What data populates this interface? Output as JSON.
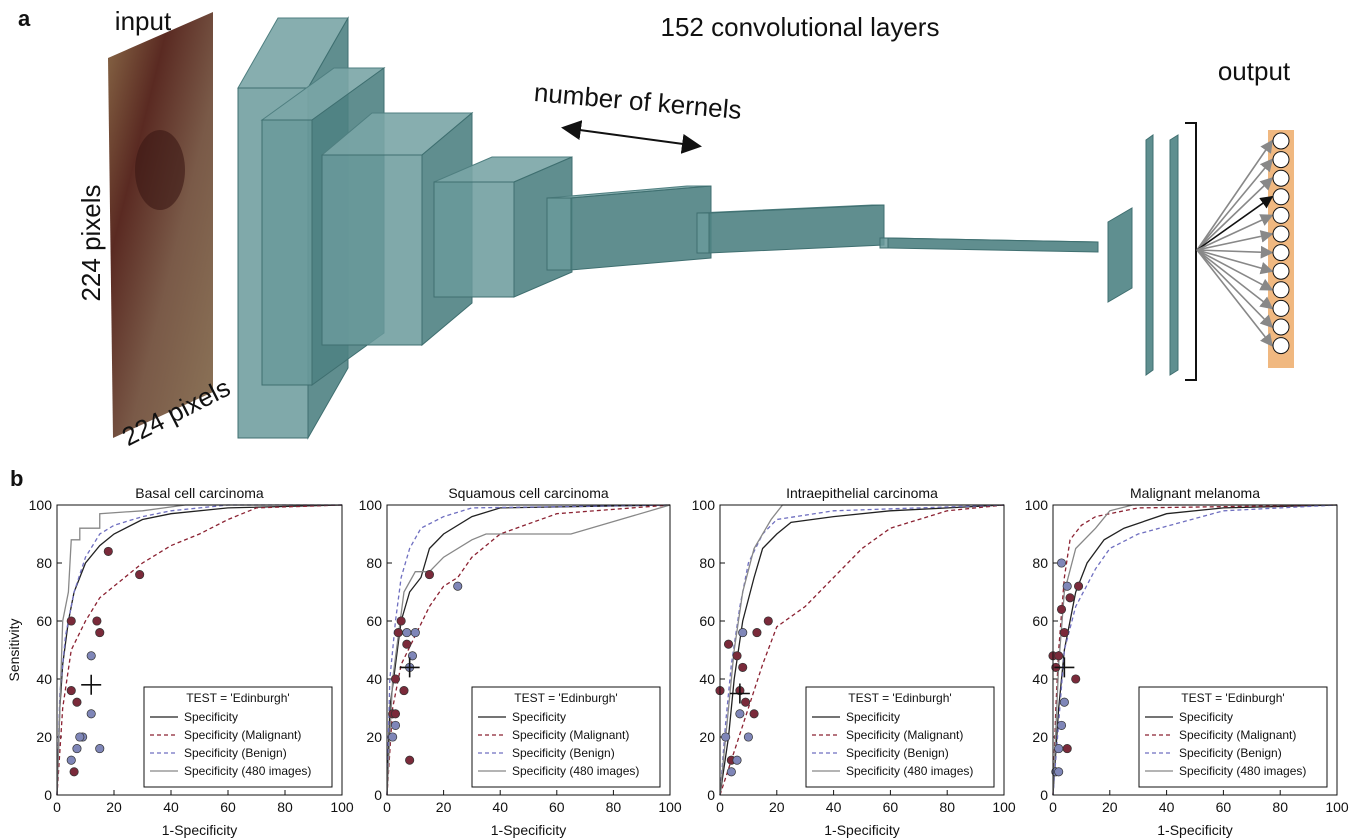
{
  "figure": {
    "panel_a": {
      "label": "a",
      "input": "input",
      "title": "152 convolutional layers",
      "output": "output",
      "kernels": "number of kernels",
      "height": "224 pixels",
      "width": "224 pixels"
    },
    "panel_b": {
      "label": "b"
    }
  },
  "chart_data": [
    {
      "type": "line",
      "title": "Basal cell carcinoma",
      "x_label": "1-Specificity",
      "y_label": "Sensitivity",
      "xlim": [
        0,
        100
      ],
      "ylim": [
        0,
        100
      ],
      "xticks": [
        0,
        20,
        40,
        60,
        80,
        100
      ],
      "yticks": [
        0,
        20,
        40,
        60,
        80,
        100
      ],
      "legend_title": "TEST = 'Edinburgh'",
      "legend": "lower right",
      "series": [
        {
          "name": "Specificity",
          "color": "#222222",
          "dash": false,
          "x": [
            0,
            1,
            2,
            4,
            6,
            10,
            15,
            20,
            30,
            40,
            60,
            100
          ],
          "values": [
            0,
            30,
            45,
            60,
            70,
            80,
            86,
            90,
            95,
            97,
            99,
            100
          ]
        },
        {
          "name": "Specificity (Malignant)",
          "color": "#8b2232",
          "dash": true,
          "x": [
            0,
            2,
            5,
            10,
            15,
            20,
            30,
            40,
            50,
            60,
            70,
            100
          ],
          "values": [
            0,
            30,
            50,
            60,
            68,
            72,
            80,
            86,
            90,
            95,
            99,
            100
          ]
        },
        {
          "name": "Specificity (Benign)",
          "color": "#6f6fc0",
          "dash": true,
          "x": [
            0,
            1,
            3,
            6,
            10,
            15,
            20,
            30,
            40,
            60,
            100
          ],
          "values": [
            0,
            35,
            55,
            70,
            82,
            90,
            93,
            96,
            98,
            100,
            100
          ]
        },
        {
          "name": "Specificity (480 images)",
          "color": "#888888",
          "dash": false,
          "x": [
            0,
            2,
            4,
            5,
            8,
            8,
            15,
            15,
            30,
            45,
            100
          ],
          "values": [
            0,
            60,
            70,
            88,
            88,
            92,
            92,
            97,
            98,
            100,
            100
          ]
        }
      ],
      "scatter": [
        {
          "color": "#7a2a3a",
          "x": [
            5,
            18,
            29,
            14,
            15,
            5,
            7,
            6
          ],
          "values": [
            60,
            84,
            76,
            60,
            56,
            36,
            32,
            8
          ]
        },
        {
          "color": "#7f86b8",
          "x": [
            12,
            12,
            9,
            8,
            5,
            7,
            15
          ],
          "values": [
            48,
            28,
            20,
            20,
            12,
            16,
            16
          ]
        }
      ],
      "mean": {
        "x": 12,
        "y": 38
      }
    },
    {
      "type": "line",
      "title": "Squamous cell carcinoma",
      "x_label": "1-Specificity",
      "xlim": [
        0,
        100
      ],
      "ylim": [
        0,
        100
      ],
      "xticks": [
        0,
        20,
        40,
        60,
        80,
        100
      ],
      "yticks": [
        0,
        20,
        40,
        60,
        80,
        100
      ],
      "legend_title": "TEST = 'Edinburgh'",
      "legend": "lower right",
      "series": [
        {
          "name": "Specificity",
          "color": "#222222",
          "dash": false,
          "x": [
            0,
            1,
            3,
            5,
            8,
            12,
            15,
            20,
            30,
            40,
            100
          ],
          "values": [
            0,
            30,
            45,
            60,
            70,
            75,
            85,
            90,
            96,
            99,
            100
          ]
        },
        {
          "name": "Specificity (Malignant)",
          "color": "#8b2232",
          "dash": true,
          "x": [
            0,
            2,
            5,
            10,
            15,
            20,
            25,
            30,
            40,
            60,
            100
          ],
          "values": [
            0,
            30,
            45,
            55,
            65,
            72,
            75,
            82,
            90,
            97,
            100
          ]
        },
        {
          "name": "Specificity (Benign)",
          "color": "#6f6fc0",
          "dash": true,
          "x": [
            0,
            1,
            3,
            5,
            8,
            12,
            20,
            30,
            100
          ],
          "values": [
            0,
            40,
            60,
            75,
            85,
            92,
            96,
            99,
            100
          ]
        },
        {
          "name": "Specificity (480 images)",
          "color": "#888888",
          "dash": false,
          "x": [
            0,
            2,
            4,
            6,
            10,
            15,
            20,
            30,
            35,
            50,
            65,
            100
          ],
          "values": [
            0,
            40,
            55,
            70,
            77,
            77,
            82,
            88,
            90,
            90,
            90,
            100
          ]
        }
      ],
      "scatter": [
        {
          "color": "#7a2a3a",
          "x": [
            3,
            5,
            4,
            7,
            6,
            15,
            8,
            2,
            3
          ],
          "values": [
            40,
            60,
            56,
            52,
            36,
            76,
            12,
            28,
            28
          ]
        },
        {
          "color": "#7f86b8",
          "x": [
            7,
            10,
            9,
            25,
            2,
            3,
            8
          ],
          "values": [
            56,
            56,
            48,
            72,
            20,
            24,
            44
          ]
        }
      ],
      "mean": {
        "x": 8,
        "y": 44
      }
    },
    {
      "type": "line",
      "title": "Intraepithelial carcinoma",
      "x_label": "1-Specificity",
      "xlim": [
        0,
        100
      ],
      "ylim": [
        0,
        100
      ],
      "xticks": [
        0,
        20,
        40,
        60,
        80,
        100
      ],
      "yticks": [
        0,
        20,
        40,
        60,
        80,
        100
      ],
      "legend_title": "TEST = 'Edinburgh'",
      "legend": "lower right",
      "series": [
        {
          "name": "Specificity",
          "color": "#222222",
          "dash": false,
          "x": [
            0,
            3,
            5,
            8,
            12,
            15,
            20,
            25,
            40,
            60,
            100
          ],
          "values": [
            0,
            20,
            40,
            60,
            75,
            85,
            90,
            94,
            96,
            98,
            100
          ]
        },
        {
          "name": "Specificity (Malignant)",
          "color": "#8b2232",
          "dash": true,
          "x": [
            0,
            5,
            10,
            15,
            20,
            30,
            40,
            50,
            60,
            80,
            100
          ],
          "values": [
            0,
            15,
            30,
            45,
            58,
            65,
            75,
            85,
            92,
            98,
            100
          ]
        },
        {
          "name": "Specificity (Benign)",
          "color": "#6f6fc0",
          "dash": true,
          "x": [
            0,
            2,
            4,
            7,
            10,
            15,
            20,
            40,
            100
          ],
          "values": [
            0,
            25,
            45,
            65,
            80,
            90,
            95,
            98,
            100
          ]
        },
        {
          "name": "Specificity (480 images)",
          "color": "#888888",
          "dash": false,
          "x": [
            0,
            3,
            5,
            8,
            12,
            18,
            22,
            100
          ],
          "values": [
            0,
            30,
            50,
            70,
            85,
            95,
            100,
            100
          ]
        }
      ],
      "scatter": [
        {
          "color": "#7a2a3a",
          "x": [
            0,
            3,
            6,
            8,
            9,
            13,
            17,
            4,
            12,
            7
          ],
          "values": [
            36,
            52,
            48,
            44,
            32,
            56,
            60,
            12,
            28,
            36
          ]
        },
        {
          "color": "#7f86b8",
          "x": [
            8,
            2,
            4,
            6,
            10,
            7
          ],
          "values": [
            56,
            20,
            8,
            12,
            20,
            28
          ]
        }
      ],
      "mean": {
        "x": 7,
        "y": 35
      }
    },
    {
      "type": "line",
      "title": "Malignant melanoma",
      "x_label": "1-Specificity",
      "xlim": [
        0,
        100
      ],
      "ylim": [
        0,
        100
      ],
      "xticks": [
        0,
        20,
        40,
        60,
        80,
        100
      ],
      "yticks": [
        0,
        20,
        40,
        60,
        80,
        100
      ],
      "legend_title": "TEST = 'Edinburgh'",
      "legend": "lower right",
      "series": [
        {
          "name": "Specificity",
          "color": "#222222",
          "dash": false,
          "x": [
            0,
            2,
            4,
            8,
            12,
            18,
            25,
            40,
            60,
            100
          ],
          "values": [
            0,
            30,
            50,
            70,
            80,
            88,
            92,
            97,
            99,
            100
          ]
        },
        {
          "name": "Specificity (Malignant)",
          "color": "#8b2232",
          "dash": true,
          "x": [
            0,
            1,
            2,
            4,
            6,
            10,
            15,
            30,
            100
          ],
          "values": [
            0,
            30,
            50,
            75,
            88,
            93,
            96,
            99,
            100
          ]
        },
        {
          "name": "Specificity (Benign)",
          "color": "#6f6fc0",
          "dash": true,
          "x": [
            0,
            2,
            4,
            8,
            15,
            20,
            30,
            45,
            60,
            100
          ],
          "values": [
            0,
            25,
            50,
            65,
            78,
            85,
            90,
            94,
            98,
            100
          ]
        },
        {
          "name": "Specificity (480 images)",
          "color": "#888888",
          "dash": false,
          "x": [
            0,
            2,
            4,
            8,
            15,
            20,
            28,
            100
          ],
          "values": [
            0,
            45,
            70,
            85,
            92,
            98,
            100,
            100
          ]
        }
      ],
      "scatter": [
        {
          "color": "#7a2a3a",
          "x": [
            0,
            2,
            3,
            4,
            6,
            9,
            8,
            5,
            1
          ],
          "values": [
            48,
            48,
            64,
            56,
            68,
            72,
            40,
            16,
            44
          ]
        },
        {
          "color": "#7f86b8",
          "x": [
            3,
            5,
            4,
            3,
            2,
            1,
            2
          ],
          "values": [
            80,
            72,
            32,
            24,
            16,
            8,
            8
          ]
        }
      ],
      "mean": {
        "x": 4,
        "y": 44
      }
    }
  ]
}
